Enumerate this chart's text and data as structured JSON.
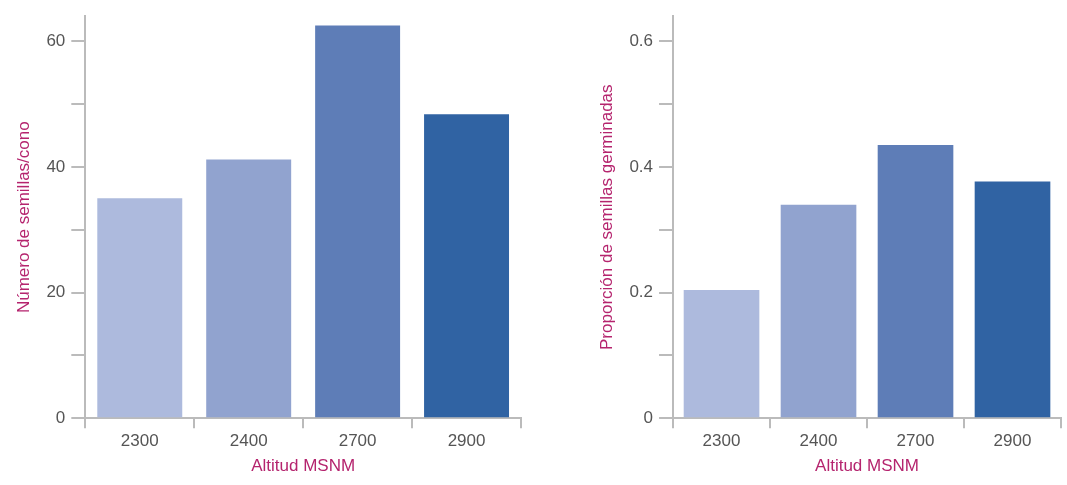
{
  "chart_data": [
    {
      "type": "bar",
      "categories": [
        "2300",
        "2400",
        "2700",
        "2900"
      ],
      "xlabel": "Altitud MSNM",
      "ylabel": "Número de semillas/cono",
      "colors": [
        "#adbadd",
        "#91a3cf",
        "#5e7db7",
        "#3063a3"
      ],
      "values": [
        35.0,
        41.2,
        62.5,
        48.4
      ],
      "ylim": [
        0,
        64
      ],
      "yticks": [
        0,
        {
          "value": 10,
          "label": null
        },
        20,
        {
          "value": 30,
          "label": null
        },
        40,
        {
          "value": 50,
          "label": null
        },
        60
      ],
      "grid": false,
      "legend": false
    },
    {
      "type": "bar",
      "categories": [
        "2300",
        "2400",
        "2700",
        "2900"
      ],
      "xlabel": "Altitud MSNM",
      "ylabel": "Proporción de semillas germinadas",
      "colors": [
        "#adbadd",
        "#91a3cf",
        "#5e7db7",
        "#3063a3"
      ],
      "values": [
        0.204,
        0.34,
        0.435,
        0.377
      ],
      "ylim": [
        0,
        0.64
      ],
      "yticks": [
        0,
        {
          "value": 0.1,
          "label": null
        },
        0.2,
        {
          "value": 0.3,
          "label": null
        },
        0.4,
        {
          "value": 0.5,
          "label": null
        },
        0.6
      ],
      "grid": false,
      "legend": false
    }
  ]
}
